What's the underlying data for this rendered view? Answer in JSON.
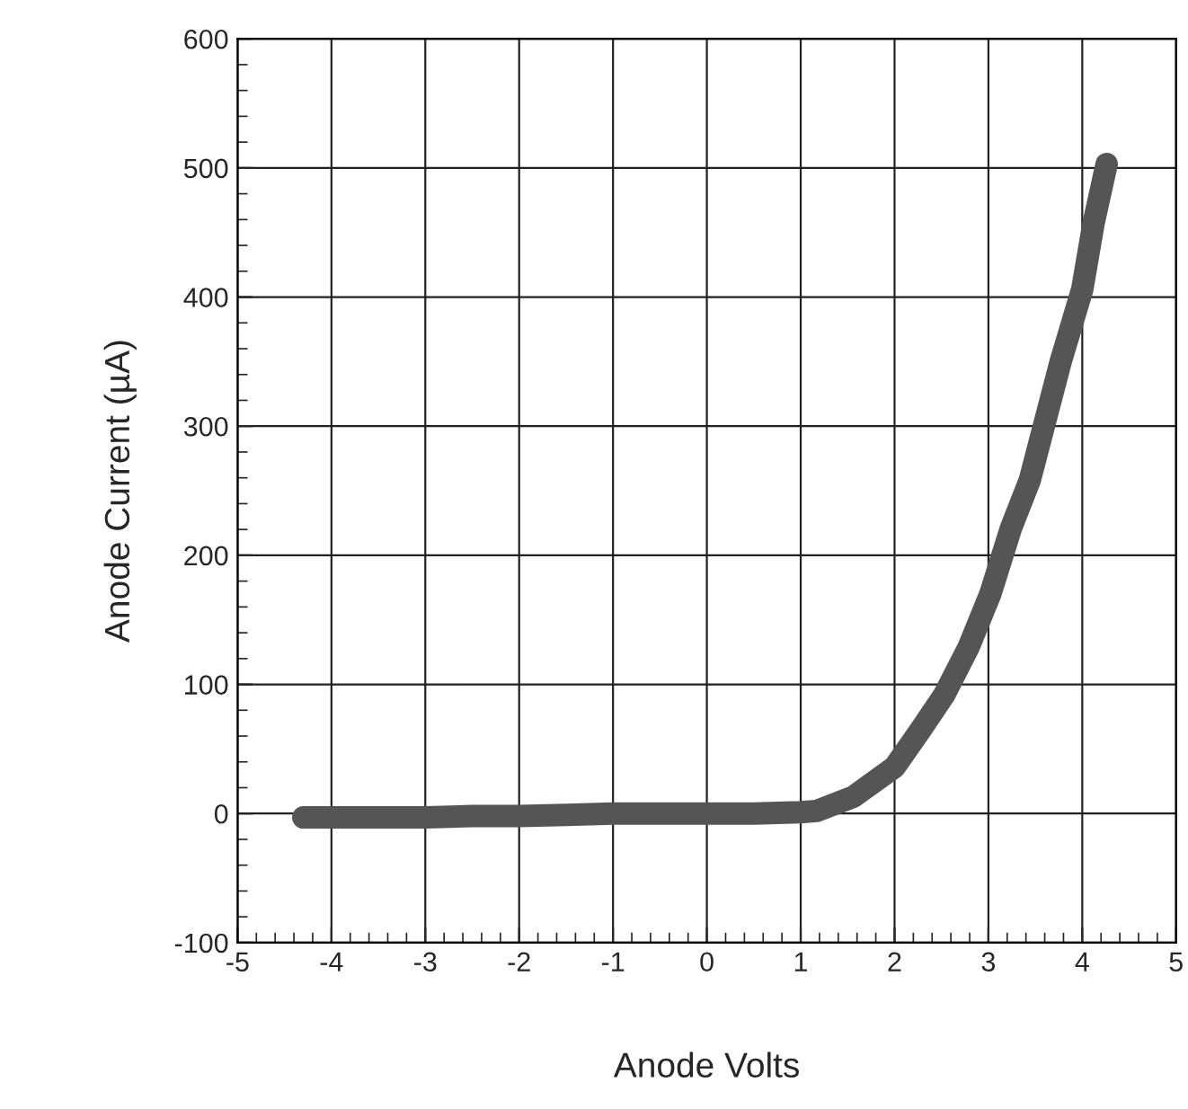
{
  "chart_data": {
    "type": "line",
    "xlabel": "Anode Volts",
    "ylabel": "Anode Current (µA)",
    "xlim": [
      -5,
      5
    ],
    "xticks": [
      -5,
      -4,
      -3,
      -2,
      -1,
      0,
      1,
      2,
      3,
      4,
      5
    ],
    "ylim": [
      -100,
      600
    ],
    "yticks": [
      -100,
      0,
      100,
      200,
      300,
      400,
      500,
      600
    ],
    "grid": true,
    "marker": "none",
    "line_style": "solid",
    "series": [
      {
        "color": "#555555",
        "x": [
          -4.3,
          -4.0,
          -3.5,
          -3.0,
          -2.5,
          -2.0,
          -1.5,
          -1.0,
          -0.5,
          0.0,
          0.5,
          1.0,
          1.17,
          1.56,
          2.0,
          2.27,
          2.53,
          2.79,
          3.02,
          3.24,
          3.44,
          3.77,
          4.0,
          4.12,
          4.26
        ],
        "values": [
          -3,
          -3,
          -3,
          -3,
          -2,
          -2,
          -1,
          0,
          0,
          0,
          0,
          1,
          2,
          13,
          36,
          64,
          92,
          129,
          170,
          221,
          258,
          350,
          406,
          457,
          503
        ]
      }
    ]
  }
}
